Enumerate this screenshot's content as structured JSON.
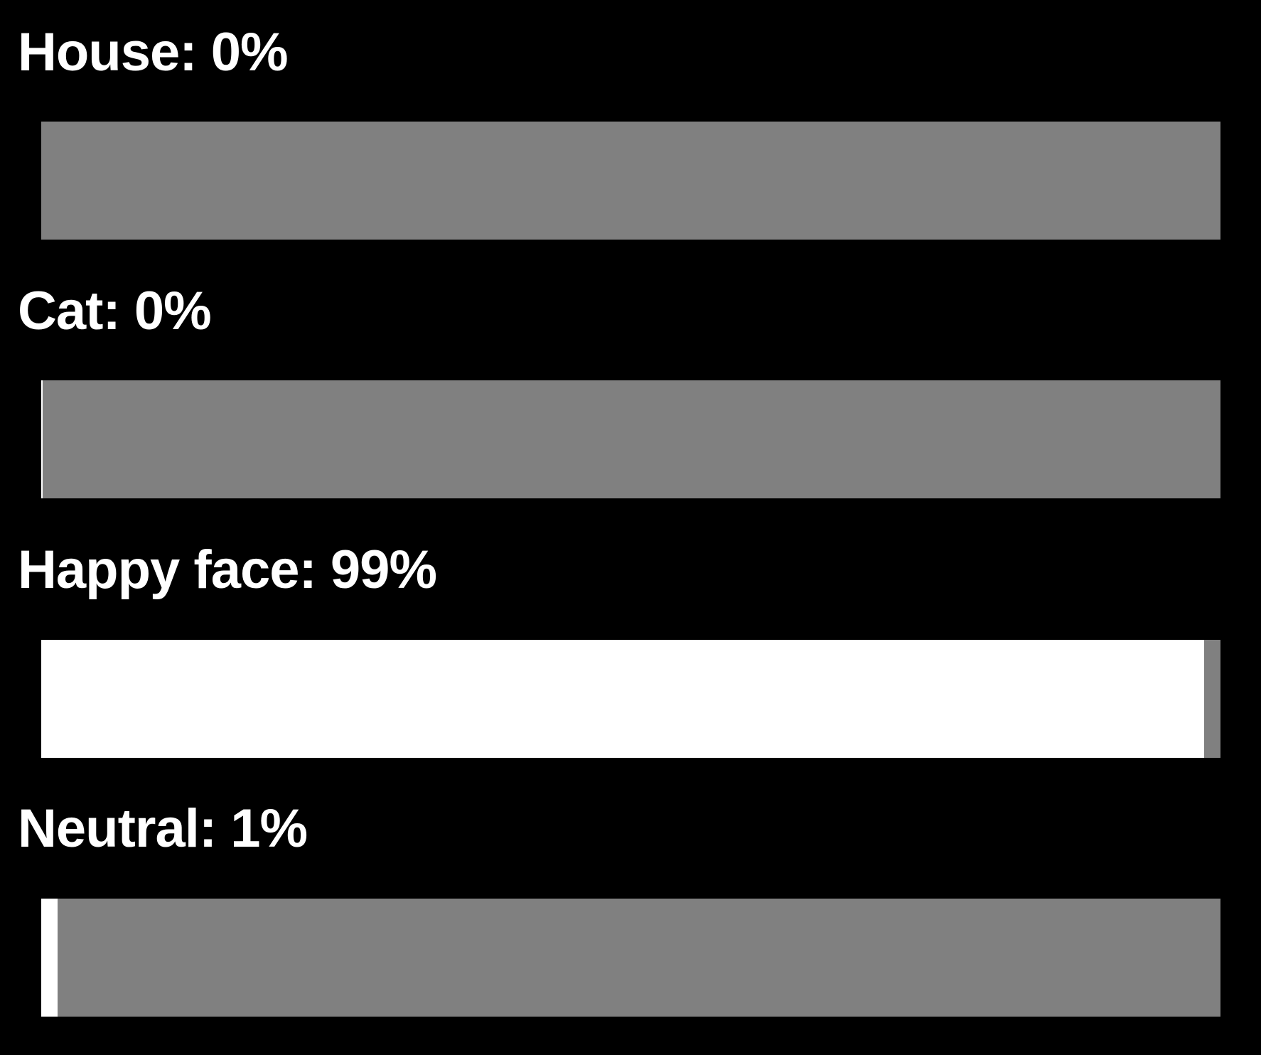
{
  "colors": {
    "background": "#000000",
    "text": "#ffffff",
    "track": "#808080",
    "fill": "#ffffff"
  },
  "classes": [
    {
      "text": "House: 0%",
      "value": 0.0
    },
    {
      "text": "Cat: 0%",
      "value": 0.001
    },
    {
      "text": "Happy face: 99%",
      "value": 0.986
    },
    {
      "text": "Neutral: 1%",
      "value": 0.014
    }
  ]
}
